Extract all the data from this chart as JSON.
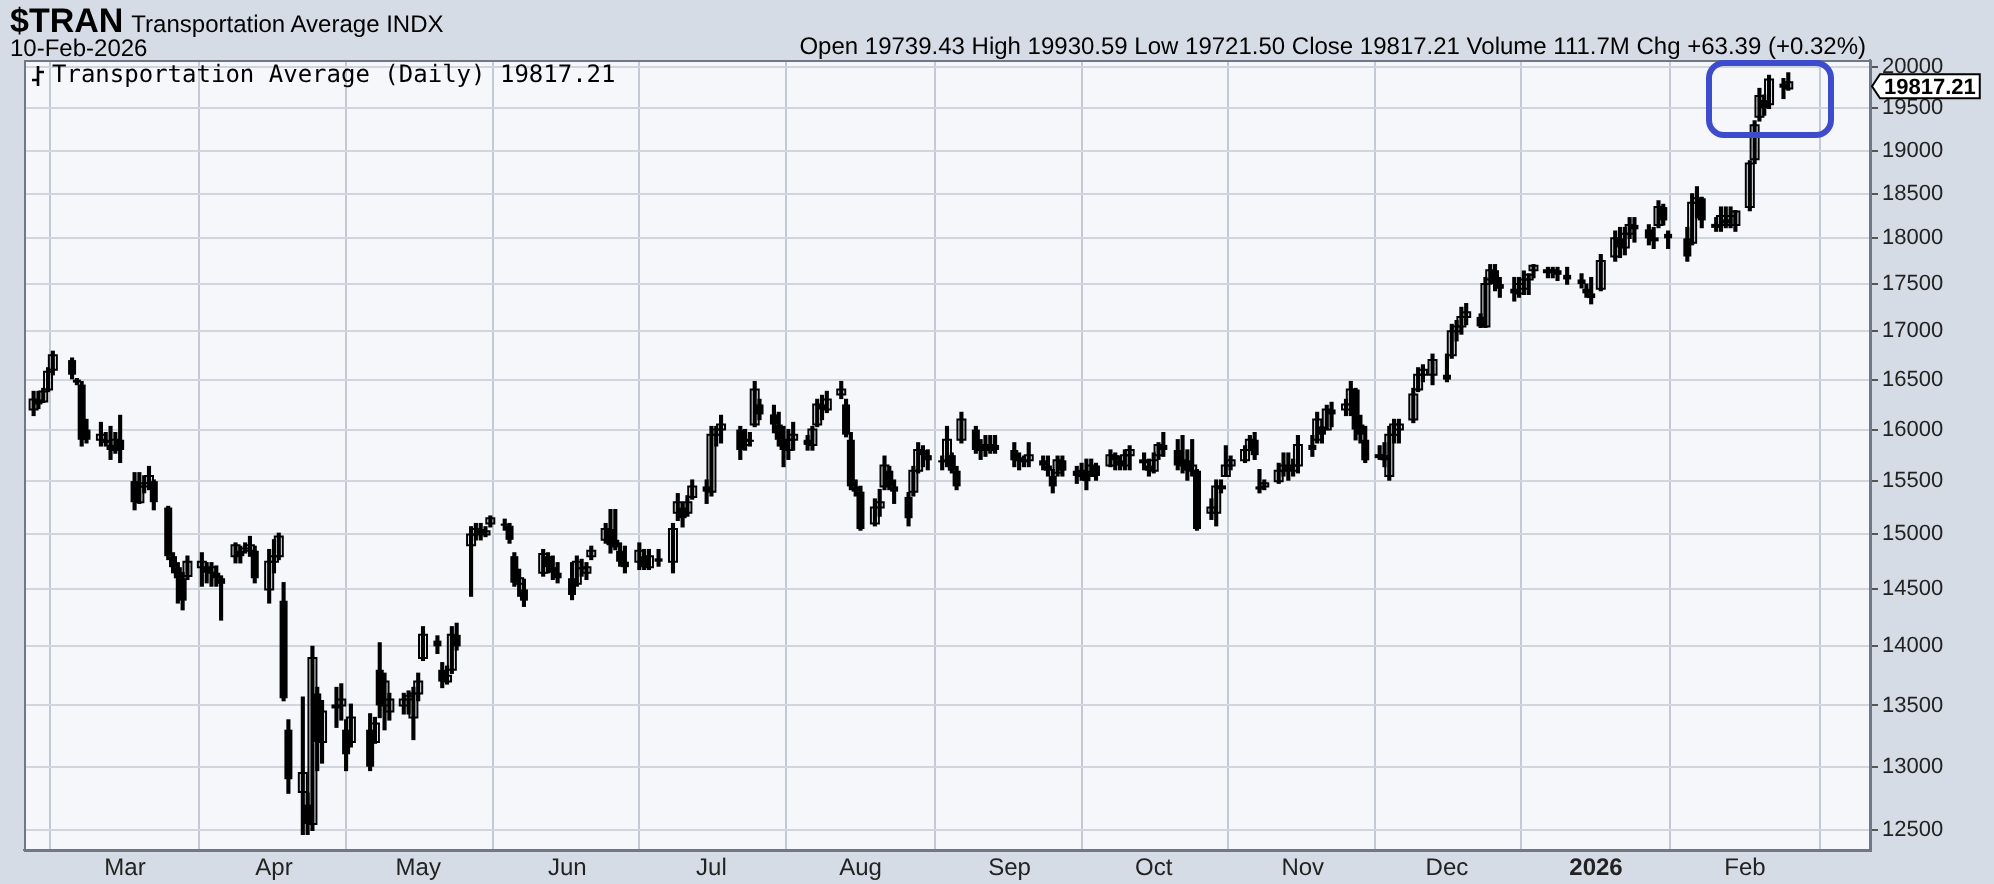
{
  "chart_data": {
    "type": "candlestick",
    "title": "$TRAN",
    "subtitle": "Transportation Average INDX",
    "annotations": [
      "10-Feb-2026",
      "Open 19739.43 High 19930.59 Low 19721.50 Close 19817.21 Volume 111.7M Chg +63.39 (+0.32%)",
      "19817.21"
    ],
    "log": "y",
    "grid": true,
    "legend": "top left",
    "xlim": [
      "2025-02-08",
      "2026-02-27"
    ],
    "xticks": [
      {
        "value": "2025-03-01",
        "label": "Mar"
      },
      {
        "value": "2025-04-01",
        "label": "Apr"
      },
      {
        "value": "2025-05-01",
        "label": "May"
      },
      {
        "value": "2025-06-01",
        "label": "Jun"
      },
      {
        "value": "2025-07-01",
        "label": "Jul"
      },
      {
        "value": "2025-08-01",
        "label": "Aug"
      },
      {
        "value": "2025-09-01",
        "label": "Sep"
      },
      {
        "value": "2025-10-01",
        "label": "Oct"
      },
      {
        "value": "2025-11-01",
        "label": "Nov"
      },
      {
        "value": "2025-12-01",
        "label": "Dec"
      },
      {
        "value": "2026-01-01",
        "label": "2026"
      },
      {
        "value": "2026-02-01",
        "label": "Feb"
      }
    ],
    "ylim": [
      12350,
      20090
    ],
    "yticks": [
      12500,
      13000,
      13500,
      14000,
      14500,
      15000,
      15500,
      16000,
      16500,
      17000,
      17500,
      18000,
      18500,
      19000,
      19500,
      20000
    ],
    "series": [
      {
        "name": "Transportation Average (Daily) 19817.21",
        "color": "#000000",
        "x": [
          "2025-02-10",
          "2025-02-11",
          "2025-02-12",
          "2025-02-13",
          "2025-02-14",
          "2025-02-18",
          "2025-02-19",
          "2025-02-20",
          "2025-02-21",
          "2025-02-24",
          "2025-02-25",
          "2025-02-26",
          "2025-02-27",
          "2025-02-28",
          "2025-03-03",
          "2025-03-04",
          "2025-03-05",
          "2025-03-06",
          "2025-03-07",
          "2025-03-10",
          "2025-03-11",
          "2025-03-12",
          "2025-03-13",
          "2025-03-14",
          "2025-03-17",
          "2025-03-18",
          "2025-03-19",
          "2025-03-20",
          "2025-03-21",
          "2025-03-24",
          "2025-03-25",
          "2025-03-26",
          "2025-03-27",
          "2025-03-28",
          "2025-03-31",
          "2025-04-01",
          "2025-04-02",
          "2025-04-03",
          "2025-04-04",
          "2025-04-07",
          "2025-04-08",
          "2025-04-09",
          "2025-04-10",
          "2025-04-11",
          "2025-04-14",
          "2025-04-15",
          "2025-04-16",
          "2025-04-17",
          "2025-04-21",
          "2025-04-22",
          "2025-04-23",
          "2025-04-24",
          "2025-04-25",
          "2025-04-28",
          "2025-04-29",
          "2025-04-30",
          "2025-05-01",
          "2025-05-02",
          "2025-05-05",
          "2025-05-06",
          "2025-05-07",
          "2025-05-08",
          "2025-05-09",
          "2025-05-12",
          "2025-05-13",
          "2025-05-14",
          "2025-05-15",
          "2025-05-16",
          "2025-05-19",
          "2025-05-20",
          "2025-05-21",
          "2025-05-22",
          "2025-05-23",
          "2025-05-27",
          "2025-05-28",
          "2025-05-29",
          "2025-05-30",
          "2025-06-02",
          "2025-06-03",
          "2025-06-04",
          "2025-06-05",
          "2025-06-06",
          "2025-06-09",
          "2025-06-10",
          "2025-06-11",
          "2025-06-12",
          "2025-06-13",
          "2025-06-16",
          "2025-06-17",
          "2025-06-18",
          "2025-06-20",
          "2025-06-23",
          "2025-06-24",
          "2025-06-25",
          "2025-06-26",
          "2025-06-27",
          "2025-06-30",
          "2025-07-01",
          "2025-07-02",
          "2025-07-03",
          "2025-07-07",
          "2025-07-08",
          "2025-07-09",
          "2025-07-10",
          "2025-07-11",
          "2025-07-14",
          "2025-07-15",
          "2025-07-16",
          "2025-07-17",
          "2025-07-18",
          "2025-07-21",
          "2025-07-22",
          "2025-07-23",
          "2025-07-24",
          "2025-07-25",
          "2025-07-28",
          "2025-07-29",
          "2025-07-30",
          "2025-07-31",
          "2025-08-01",
          "2025-08-04",
          "2025-08-05",
          "2025-08-06",
          "2025-08-07",
          "2025-08-08",
          "2025-08-11",
          "2025-08-12",
          "2025-08-13",
          "2025-08-14",
          "2025-08-15",
          "2025-08-18",
          "2025-08-19",
          "2025-08-20",
          "2025-08-21",
          "2025-08-22",
          "2025-08-25",
          "2025-08-26",
          "2025-08-27",
          "2025-08-28",
          "2025-08-29",
          "2025-09-02",
          "2025-09-03",
          "2025-09-04",
          "2025-09-05",
          "2025-09-08",
          "2025-09-09",
          "2025-09-10",
          "2025-09-11",
          "2025-09-12",
          "2025-09-15",
          "2025-09-16",
          "2025-09-17",
          "2025-09-18",
          "2025-09-19",
          "2025-09-22",
          "2025-09-23",
          "2025-09-24",
          "2025-09-25",
          "2025-09-26",
          "2025-09-29",
          "2025-09-30",
          "2025-10-01",
          "2025-10-02",
          "2025-10-03",
          "2025-10-06",
          "2025-10-07",
          "2025-10-08",
          "2025-10-09",
          "2025-10-10",
          "2025-10-13",
          "2025-10-14",
          "2025-10-15",
          "2025-10-16",
          "2025-10-17",
          "2025-10-20",
          "2025-10-21",
          "2025-10-22",
          "2025-10-23",
          "2025-10-24",
          "2025-10-27",
          "2025-10-28",
          "2025-10-29",
          "2025-10-30",
          "2025-10-31",
          "2025-11-03",
          "2025-11-04",
          "2025-11-05",
          "2025-11-06",
          "2025-11-07",
          "2025-11-10",
          "2025-11-11",
          "2025-11-12",
          "2025-11-13",
          "2025-11-14",
          "2025-11-17",
          "2025-11-18",
          "2025-11-19",
          "2025-11-20",
          "2025-11-21",
          "2025-11-24",
          "2025-11-25",
          "2025-11-26",
          "2025-11-28",
          "2025-12-01",
          "2025-12-02",
          "2025-12-03",
          "2025-12-04",
          "2025-12-05",
          "2025-12-08",
          "2025-12-09",
          "2025-12-10",
          "2025-12-11",
          "2025-12-12",
          "2025-12-15",
          "2025-12-16",
          "2025-12-17",
          "2025-12-18",
          "2025-12-19",
          "2025-12-22",
          "2025-12-23",
          "2025-12-24",
          "2025-12-26",
          "2025-12-29",
          "2025-12-30",
          "2025-12-31",
          "2026-01-02",
          "2026-01-05",
          "2026-01-06",
          "2026-01-07",
          "2026-01-08",
          "2026-01-09",
          "2026-01-12",
          "2026-01-13",
          "2026-01-14",
          "2026-01-15",
          "2026-01-16",
          "2026-01-20",
          "2026-01-21",
          "2026-01-22",
          "2026-01-23",
          "2026-01-26",
          "2026-01-27",
          "2026-01-28",
          "2026-01-29",
          "2026-01-30",
          "2026-02-02",
          "2026-02-03",
          "2026-02-04",
          "2026-02-05",
          "2026-02-06",
          "2026-02-09",
          "2026-02-10"
        ],
        "ohlc": [
          [
            16200,
            16380,
            16140,
            16300
          ],
          [
            16300,
            16380,
            16210,
            16250
          ],
          [
            16280,
            16410,
            16270,
            16380
          ],
          [
            16400,
            16620,
            16380,
            16580
          ],
          [
            16600,
            16790,
            16550,
            16750
          ],
          [
            16700,
            16720,
            16510,
            16550
          ],
          [
            16500,
            16510,
            16450,
            16470
          ],
          [
            16450,
            16480,
            15840,
            15900
          ],
          [
            16000,
            16100,
            15870,
            15900
          ],
          [
            15900,
            16070,
            15840,
            15950
          ],
          [
            15900,
            15970,
            15840,
            15870
          ],
          [
            15850,
            16030,
            15710,
            15800
          ],
          [
            15800,
            15970,
            15770,
            15900
          ],
          [
            15900,
            16140,
            15680,
            15800
          ],
          [
            15500,
            15580,
            15230,
            15300
          ],
          [
            15300,
            15580,
            15290,
            15450
          ],
          [
            15450,
            15550,
            15390,
            15480
          ],
          [
            15480,
            15640,
            15420,
            15550
          ],
          [
            15500,
            15510,
            15230,
            15300
          ],
          [
            15250,
            15260,
            14770,
            14800
          ],
          [
            14800,
            14830,
            14650,
            14700
          ],
          [
            14700,
            14740,
            14380,
            14600
          ],
          [
            14600,
            14650,
            14320,
            14400
          ],
          [
            14620,
            14800,
            14590,
            14750
          ],
          [
            14700,
            14830,
            14530,
            14750
          ],
          [
            14700,
            14740,
            14560,
            14650
          ],
          [
            14650,
            14740,
            14530,
            14700
          ],
          [
            14650,
            14710,
            14530,
            14600
          ],
          [
            14600,
            14620,
            14230,
            14550
          ],
          [
            14800,
            14920,
            14740,
            14900
          ],
          [
            14850,
            14890,
            14740,
            14800
          ],
          [
            14880,
            14920,
            14830,
            14870
          ],
          [
            14850,
            14980,
            14800,
            14900
          ],
          [
            14850,
            14890,
            14560,
            14600
          ],
          [
            14500,
            14860,
            14380,
            14750
          ],
          [
            14750,
            14950,
            14650,
            14800
          ],
          [
            14800,
            15010,
            14770,
            14980
          ],
          [
            14400,
            14560,
            13540,
            13560
          ],
          [
            13300,
            13380,
            12790,
            12900
          ],
          [
            12800,
            13570,
            12470,
            12950
          ],
          [
            12700,
            12790,
            12470,
            12550
          ],
          [
            12550,
            14000,
            12500,
            13900
          ],
          [
            13600,
            13650,
            12970,
            13200
          ],
          [
            13200,
            13540,
            13030,
            13450
          ],
          [
            13500,
            13650,
            13320,
            13500
          ],
          [
            13500,
            13680,
            13380,
            13550
          ],
          [
            13300,
            13380,
            12970,
            13100
          ],
          [
            13200,
            13510,
            13160,
            13400
          ],
          [
            13300,
            13430,
            12970,
            13000
          ],
          [
            13200,
            13400,
            13190,
            13350
          ],
          [
            13800,
            14030,
            13400,
            13500
          ],
          [
            13500,
            13770,
            13300,
            13700
          ],
          [
            13450,
            13600,
            13380,
            13550
          ],
          [
            13500,
            13600,
            13430,
            13550
          ],
          [
            13550,
            13620,
            13430,
            13580
          ],
          [
            13400,
            13650,
            13220,
            13600
          ],
          [
            13600,
            13770,
            13540,
            13700
          ],
          [
            13900,
            14170,
            13880,
            14100
          ],
          [
            14050,
            14090,
            13940,
            14000
          ],
          [
            13800,
            13860,
            13650,
            13700
          ],
          [
            13700,
            13830,
            13680,
            13750
          ],
          [
            13800,
            14170,
            13770,
            14100
          ],
          [
            14100,
            14200,
            13970,
            14000
          ],
          [
            14900,
            15070,
            14440,
            15000
          ],
          [
            15000,
            15100,
            14950,
            15050
          ],
          [
            15050,
            15100,
            14950,
            15000
          ],
          [
            15000,
            15070,
            14980,
            15030
          ],
          [
            15100,
            15170,
            15070,
            15150
          ],
          [
            15100,
            15140,
            15040,
            15080
          ],
          [
            15080,
            15100,
            14920,
            14950
          ],
          [
            14800,
            14830,
            14530,
            14560
          ],
          [
            14550,
            14680,
            14440,
            14600
          ],
          [
            14500,
            14590,
            14350,
            14400
          ],
          [
            14650,
            14860,
            14620,
            14820
          ],
          [
            14800,
            14830,
            14650,
            14700
          ],
          [
            14700,
            14800,
            14590,
            14650
          ],
          [
            14650,
            14740,
            14560,
            14600
          ],
          [
            14600,
            14740,
            14410,
            14450
          ],
          [
            14550,
            14800,
            14530,
            14750
          ],
          [
            14700,
            14770,
            14620,
            14680
          ],
          [
            14650,
            14740,
            14590,
            14700
          ],
          [
            14800,
            14890,
            14770,
            14850
          ],
          [
            14950,
            15100,
            14920,
            15050
          ],
          [
            15050,
            15230,
            14830,
            14900
          ],
          [
            14950,
            15230,
            14860,
            14880
          ],
          [
            14850,
            14920,
            14710,
            14750
          ],
          [
            14750,
            14890,
            14650,
            14700
          ],
          [
            14750,
            14920,
            14680,
            14850
          ],
          [
            14800,
            14860,
            14680,
            14700
          ],
          [
            14700,
            14860,
            14680,
            14800
          ],
          [
            14780,
            14860,
            14710,
            14750
          ],
          [
            14750,
            15100,
            14650,
            15050
          ],
          [
            15200,
            15380,
            15130,
            15300
          ],
          [
            15250,
            15290,
            15070,
            15150
          ],
          [
            15200,
            15360,
            15170,
            15300
          ],
          [
            15350,
            15510,
            15330,
            15450
          ],
          [
            15450,
            15510,
            15290,
            15400
          ],
          [
            15400,
            16030,
            15360,
            15950
          ],
          [
            15950,
            16030,
            15840,
            16000
          ],
          [
            16000,
            16140,
            15870,
            16050
          ],
          [
            16000,
            16030,
            15710,
            15800
          ],
          [
            15850,
            16000,
            15800,
            15900
          ],
          [
            15900,
            15970,
            15840,
            15880
          ],
          [
            16050,
            16480,
            16030,
            16400
          ],
          [
            16250,
            16300,
            16100,
            16150
          ],
          [
            16150,
            16240,
            15970,
            16050
          ],
          [
            16050,
            16170,
            15840,
            15900
          ],
          [
            15900,
            16030,
            15640,
            15800
          ],
          [
            15800,
            16000,
            15710,
            15900
          ],
          [
            15900,
            16070,
            15800,
            15950
          ],
          [
            15900,
            15940,
            15800,
            15850
          ],
          [
            15850,
            16030,
            15800,
            16000
          ],
          [
            16050,
            16300,
            16030,
            16250
          ],
          [
            16250,
            16340,
            16100,
            16200
          ],
          [
            16200,
            16380,
            16170,
            16300
          ],
          [
            16350,
            16480,
            16310,
            16400
          ],
          [
            16250,
            16300,
            15930,
            15950
          ],
          [
            15900,
            15970,
            15420,
            15450
          ],
          [
            15450,
            15510,
            15360,
            15400
          ],
          [
            15400,
            15450,
            15040,
            15050
          ],
          [
            15100,
            15330,
            15080,
            15250
          ],
          [
            15250,
            15420,
            15170,
            15300
          ],
          [
            15450,
            15740,
            15420,
            15650
          ],
          [
            15600,
            15640,
            15420,
            15450
          ],
          [
            15450,
            15510,
            15290,
            15400
          ],
          [
            15350,
            15390,
            15080,
            15150
          ],
          [
            15400,
            15640,
            15360,
            15600
          ],
          [
            15600,
            15870,
            15580,
            15800
          ],
          [
            15800,
            15840,
            15640,
            15750
          ],
          [
            15750,
            15800,
            15610,
            15700
          ],
          [
            15700,
            15740,
            15610,
            15680
          ],
          [
            15700,
            16030,
            15640,
            15900
          ],
          [
            15750,
            15770,
            15580,
            15600
          ],
          [
            15600,
            15640,
            15420,
            15450
          ],
          [
            15900,
            16170,
            15870,
            16100
          ],
          [
            16000,
            16030,
            15770,
            15800
          ],
          [
            15800,
            15900,
            15710,
            15850
          ],
          [
            15850,
            15940,
            15740,
            15800
          ],
          [
            15800,
            15940,
            15770,
            15850
          ],
          [
            15850,
            15940,
            15770,
            15800
          ],
          [
            15800,
            15870,
            15640,
            15700
          ],
          [
            15700,
            15770,
            15610,
            15720
          ],
          [
            15700,
            15740,
            15640,
            15690
          ],
          [
            15700,
            15870,
            15640,
            15750
          ],
          [
            15700,
            15740,
            15610,
            15650
          ],
          [
            15650,
            15740,
            15550,
            15600
          ],
          [
            15550,
            15610,
            15390,
            15450
          ],
          [
            15580,
            15740,
            15550,
            15700
          ],
          [
            15700,
            15740,
            15550,
            15600
          ],
          [
            15600,
            15640,
            15480,
            15550
          ],
          [
            15550,
            15670,
            15510,
            15600
          ],
          [
            15600,
            15710,
            15420,
            15500
          ],
          [
            15550,
            15710,
            15550,
            15650
          ],
          [
            15650,
            15670,
            15510,
            15550
          ],
          [
            15650,
            15800,
            15640,
            15750
          ],
          [
            15750,
            15770,
            15610,
            15700
          ],
          [
            15700,
            15740,
            15610,
            15650
          ],
          [
            15650,
            15800,
            15610,
            15750
          ],
          [
            15750,
            15840,
            15610,
            15800
          ],
          [
            15700,
            15770,
            15610,
            15700
          ],
          [
            15650,
            15710,
            15550,
            15600
          ],
          [
            15600,
            15770,
            15580,
            15700
          ],
          [
            15750,
            15870,
            15710,
            15850
          ],
          [
            15850,
            15970,
            15740,
            15800
          ],
          [
            15800,
            15900,
            15610,
            15650
          ],
          [
            15650,
            15940,
            15580,
            15700
          ],
          [
            15700,
            15800,
            15510,
            15600
          ],
          [
            15600,
            15900,
            15550,
            15650
          ],
          [
            15600,
            15610,
            15040,
            15050
          ],
          [
            15200,
            15330,
            15140,
            15250
          ],
          [
            15200,
            15510,
            15080,
            15450
          ],
          [
            15450,
            15510,
            15390,
            15450
          ],
          [
            15550,
            15840,
            15550,
            15650
          ],
          [
            15650,
            15740,
            15610,
            15700
          ],
          [
            15700,
            15840,
            15680,
            15800
          ],
          [
            15800,
            15940,
            15800,
            15900
          ],
          [
            15900,
            15970,
            15710,
            15750
          ],
          [
            15450,
            15610,
            15390,
            15420
          ],
          [
            15450,
            15510,
            15420,
            15480
          ],
          [
            15500,
            15670,
            15480,
            15600
          ],
          [
            15600,
            15770,
            15550,
            15650
          ],
          [
            15650,
            15770,
            15510,
            15600
          ],
          [
            15600,
            15710,
            15550,
            15650
          ],
          [
            15650,
            15940,
            15580,
            15850
          ],
          [
            15850,
            15940,
            15740,
            15800
          ],
          [
            15900,
            16170,
            15870,
            16100
          ],
          [
            16030,
            16030,
            15870,
            15950
          ],
          [
            16000,
            16240,
            16000,
            16200
          ],
          [
            16200,
            16270,
            16030,
            16150
          ],
          [
            16200,
            16300,
            16140,
            16250
          ],
          [
            16250,
            16480,
            16140,
            16400
          ],
          [
            16400,
            16410,
            15900,
            16000
          ],
          [
            16050,
            16140,
            15870,
            15950
          ],
          [
            15900,
            16030,
            15680,
            15700
          ],
          [
            15750,
            15840,
            15710,
            15750
          ],
          [
            15750,
            15870,
            15640,
            15700
          ],
          [
            15550,
            16030,
            15510,
            15950
          ],
          [
            15950,
            16100,
            15870,
            16050
          ],
          [
            16000,
            16100,
            15870,
            16050
          ],
          [
            16100,
            16410,
            16070,
            16350
          ],
          [
            16400,
            16620,
            16380,
            16550
          ],
          [
            16550,
            16650,
            16480,
            16600
          ],
          [
            16550,
            16760,
            16450,
            16700
          ],
          [
            16550,
            16760,
            16480,
            16500
          ],
          [
            16750,
            17070,
            16720,
            17000
          ],
          [
            17000,
            17110,
            16900,
            17050
          ],
          [
            17050,
            17250,
            16970,
            17150
          ],
          [
            17150,
            17290,
            17070,
            17200
          ],
          [
            17150,
            17180,
            17040,
            17050
          ],
          [
            17050,
            17570,
            17040,
            17500
          ],
          [
            17550,
            17710,
            17500,
            17650
          ],
          [
            17650,
            17710,
            17430,
            17500
          ],
          [
            17500,
            17570,
            17360,
            17450
          ],
          [
            17450,
            17570,
            17320,
            17400
          ],
          [
            17400,
            17570,
            17360,
            17500
          ],
          [
            17450,
            17640,
            17390,
            17550
          ],
          [
            17550,
            17610,
            17390,
            17600
          ],
          [
            17650,
            17710,
            17570,
            17700
          ],
          [
            17650,
            17680,
            17570,
            17650
          ],
          [
            17650,
            17680,
            17570,
            17650
          ],
          [
            17650,
            17680,
            17540,
            17600
          ],
          [
            17600,
            17680,
            17500,
            17550
          ],
          [
            17550,
            17610,
            17460,
            17500
          ],
          [
            17450,
            17500,
            17360,
            17400
          ],
          [
            17400,
            17570,
            17290,
            17350
          ],
          [
            17450,
            17820,
            17430,
            17750
          ],
          [
            17800,
            18080,
            17750,
            18000
          ],
          [
            18000,
            18120,
            17790,
            17900
          ],
          [
            17900,
            18120,
            17820,
            18050
          ],
          [
            18050,
            18230,
            18000,
            18150
          ],
          [
            18150,
            18230,
            17960,
            18100
          ],
          [
            18100,
            18150,
            17930,
            18000
          ],
          [
            18000,
            18120,
            17890,
            18000
          ],
          [
            18150,
            18420,
            18120,
            18350
          ],
          [
            18350,
            18380,
            18150,
            18200
          ],
          [
            18050,
            18080,
            17890,
            18000
          ],
          [
            18000,
            18120,
            17750,
            17800
          ],
          [
            17950,
            18500,
            17930,
            18400
          ],
          [
            18400,
            18580,
            18230,
            18450
          ],
          [
            18450,
            18460,
            18120,
            18200
          ],
          [
            18150,
            18230,
            18080,
            18150
          ],
          [
            18150,
            18350,
            18080,
            18250
          ],
          [
            18200,
            18350,
            18120,
            18200
          ],
          [
            18150,
            18350,
            18120,
            18250
          ],
          [
            18150,
            18310,
            18080,
            18300
          ],
          [
            18350,
            18880,
            18310,
            18850
          ],
          [
            18900,
            19350,
            18850,
            19300
          ],
          [
            19400,
            19740,
            19350,
            19650
          ],
          [
            19600,
            19660,
            19420,
            19500
          ],
          [
            19550,
            19900,
            19500,
            19850
          ],
          [
            19800,
            19860,
            19620,
            19750
          ],
          [
            19739.43,
            19930.59,
            19721.5,
            19817.21
          ]
        ]
      }
    ]
  }
}
